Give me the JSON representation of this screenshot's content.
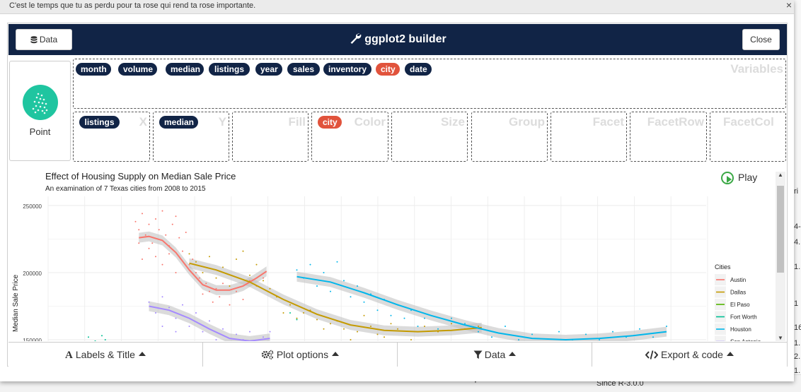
{
  "window": {
    "title": "C'est le temps que tu as perdu pour ta rose qui rend ta rose importante.",
    "close_glyph": "×"
  },
  "background": {
    "texts": [
      "ri",
      "4-",
      "4.",
      "1.",
      "1",
      "16",
      "1.",
      "2.",
      "1."
    ],
    "bottom_text": "Since R-3.0.0"
  },
  "header": {
    "data_button": "Data",
    "title": "ggplot2 builder",
    "close_button": "Close"
  },
  "geom": {
    "label": "Point"
  },
  "variables": {
    "label": "Variables",
    "items": [
      {
        "label": "month",
        "color": "#112446"
      },
      {
        "label": "volume",
        "color": "#112446"
      },
      {
        "label": "median",
        "color": "#112446"
      },
      {
        "label": "listings",
        "color": "#112446"
      },
      {
        "label": "year",
        "color": "#112446"
      },
      {
        "label": "sales",
        "color": "#112446"
      },
      {
        "label": "inventory",
        "color": "#112446"
      },
      {
        "label": "city",
        "color": "#e1533c"
      },
      {
        "label": "date",
        "color": "#112446"
      }
    ]
  },
  "dropzones": [
    {
      "label": "X",
      "value": "listings"
    },
    {
      "label": "Y",
      "value": "median"
    },
    {
      "label": "Fill",
      "value": ""
    },
    {
      "label": "Color",
      "value": "city"
    },
    {
      "label": "Size",
      "value": ""
    },
    {
      "label": "Group",
      "value": ""
    },
    {
      "label": "Facet",
      "value": ""
    },
    {
      "label": "FacetRow",
      "value": ""
    },
    {
      "label": "FacetCol",
      "value": ""
    }
  ],
  "play": {
    "label": "Play"
  },
  "footer": {
    "labels_title": "Labels & Title",
    "plot_options": "Plot options",
    "data": "Data",
    "export": "Export & code"
  },
  "chart_data": {
    "type": "scatter",
    "title": "Effect of Housing Supply on Median Sale Price",
    "subtitle": "An examination of 7 Texas cities from 2008 to 2015",
    "xlabel": "",
    "ylabel": "Median Sale Price",
    "yticks": [
      "250000",
      "200000",
      "150000"
    ],
    "ylim": [
      148000,
      258000
    ],
    "xlim": [
      0,
      100
    ],
    "grid": true,
    "legend_title": "Cities",
    "legend_position": "right",
    "series": [
      {
        "name": "Austin",
        "color": "#f8766d",
        "smooth": [
          [
            13.5,
            226000
          ],
          [
            15,
            227000
          ],
          [
            17,
            224000
          ],
          [
            19,
            215000
          ],
          [
            21,
            202000
          ],
          [
            23,
            191000
          ],
          [
            25,
            187000
          ],
          [
            27,
            187000
          ],
          [
            29,
            190000
          ],
          [
            31,
            196000
          ],
          [
            32.5,
            201000
          ]
        ],
        "points": [
          [
            13,
            238000
          ],
          [
            13.5,
            232000
          ],
          [
            14,
            244000
          ],
          [
            14.5,
            228000
          ],
          [
            15,
            236000
          ],
          [
            15.5,
            222000
          ],
          [
            16,
            240000
          ],
          [
            16.5,
            232000
          ],
          [
            17,
            246000
          ],
          [
            17.5,
            228000
          ],
          [
            18,
            220000
          ],
          [
            18.5,
            236000
          ],
          [
            19,
            242000
          ],
          [
            19.5,
            226000
          ],
          [
            20,
            216000
          ],
          [
            20.5,
            230000
          ],
          [
            21,
            206000
          ],
          [
            21.5,
            210000
          ],
          [
            22,
            200000
          ],
          [
            22.5,
            196000
          ],
          [
            23,
            184000
          ],
          [
            23.5,
            192000
          ],
          [
            24,
            186000
          ],
          [
            24.5,
            178000
          ],
          [
            25,
            188000
          ],
          [
            25.5,
            182000
          ],
          [
            26,
            192000
          ],
          [
            27,
            176000
          ],
          [
            28,
            186000
          ],
          [
            29,
            180000
          ],
          [
            30,
            194000
          ],
          [
            31,
            190000
          ],
          [
            32,
            196000
          ],
          [
            15,
            218000
          ],
          [
            16,
            212000
          ],
          [
            17,
            206000
          ],
          [
            18,
            214000
          ],
          [
            19,
            200000
          ],
          [
            14,
            210000
          ],
          [
            13.5,
            222000
          ]
        ]
      },
      {
        "name": "Dallas",
        "color": "#c49a00",
        "smooth": [
          [
            21,
            207000
          ],
          [
            25,
            202000
          ],
          [
            30,
            193000
          ],
          [
            35,
            180000
          ],
          [
            40,
            169000
          ],
          [
            45,
            161000
          ],
          [
            50,
            157000
          ],
          [
            55,
            156000
          ],
          [
            60,
            157000
          ],
          [
            64.5,
            159000
          ]
        ],
        "points": [
          [
            21,
            214000
          ],
          [
            22,
            208000
          ],
          [
            23,
            200000
          ],
          [
            24,
            212000
          ],
          [
            25,
            196000
          ],
          [
            26,
            204000
          ],
          [
            27,
            190000
          ],
          [
            28,
            210000
          ],
          [
            29,
            216000
          ],
          [
            30,
            198000
          ],
          [
            31,
            206000
          ],
          [
            32,
            194000
          ],
          [
            33,
            188000
          ],
          [
            34,
            182000
          ],
          [
            36,
            176000
          ],
          [
            38,
            170000
          ],
          [
            40,
            165000
          ],
          [
            42,
            162000
          ],
          [
            44,
            158000
          ],
          [
            46,
            156000
          ],
          [
            48,
            160000
          ],
          [
            50,
            152000
          ],
          [
            52,
            158000
          ],
          [
            54,
            150000
          ],
          [
            56,
            160000
          ],
          [
            58,
            156000
          ],
          [
            60,
            162000
          ],
          [
            62,
            158000
          ],
          [
            64,
            160000
          ],
          [
            35,
            170000
          ],
          [
            37,
            166000
          ],
          [
            39,
            172000
          ],
          [
            41,
            158000
          ],
          [
            43,
            164000
          ],
          [
            45,
            150000
          ],
          [
            47,
            168000
          ],
          [
            49,
            154000
          ],
          [
            51,
            162000
          ]
        ]
      },
      {
        "name": "El Paso",
        "color": "#53b400",
        "smooth": [],
        "points": []
      },
      {
        "name": "Fort Worth",
        "color": "#00c094",
        "smooth": [],
        "points": [
          [
            6,
            152000
          ],
          [
            7,
            149000
          ],
          [
            8,
            153000
          ],
          [
            8.5,
            150000
          ],
          [
            36,
            170000
          ],
          [
            37,
            165000
          ]
        ]
      },
      {
        "name": "Houston",
        "color": "#00b6eb",
        "smooth": [
          [
            37,
            197000
          ],
          [
            42,
            193000
          ],
          [
            47,
            185000
          ],
          [
            52,
            176000
          ],
          [
            57,
            168000
          ],
          [
            62,
            161000
          ],
          [
            67,
            155000
          ],
          [
            72,
            151000
          ],
          [
            77,
            150000
          ],
          [
            82,
            151000
          ],
          [
            87,
            153000
          ],
          [
            92,
            156000
          ]
        ],
        "points": [
          [
            37,
            202000
          ],
          [
            38,
            196000
          ],
          [
            39,
            206000
          ],
          [
            40,
            190000
          ],
          [
            41,
            200000
          ],
          [
            42,
            186000
          ],
          [
            43,
            208000
          ],
          [
            44,
            194000
          ],
          [
            45,
            182000
          ],
          [
            46,
            190000
          ],
          [
            47,
            178000
          ],
          [
            48,
            184000
          ],
          [
            49,
            172000
          ],
          [
            50,
            180000
          ],
          [
            51,
            168000
          ],
          [
            52,
            176000
          ],
          [
            53,
            166000
          ],
          [
            54,
            172000
          ],
          [
            55,
            160000
          ],
          [
            56,
            166000
          ],
          [
            58,
            158000
          ],
          [
            60,
            166000
          ],
          [
            62,
            162000
          ],
          [
            64,
            156000
          ],
          [
            66,
            152000
          ],
          [
            68,
            160000
          ],
          [
            70,
            150000
          ],
          [
            72,
            154000
          ],
          [
            74,
            148000
          ],
          [
            76,
            156000
          ],
          [
            78,
            150000
          ],
          [
            80,
            154000
          ],
          [
            82,
            150000
          ],
          [
            84,
            156000
          ],
          [
            86,
            152000
          ],
          [
            88,
            158000
          ],
          [
            90,
            152000
          ],
          [
            92,
            160000
          ]
        ]
      },
      {
        "name": "San Antonio",
        "color": "#a58aff",
        "smooth": [
          [
            15,
            175000
          ],
          [
            18,
            172000
          ],
          [
            21,
            166000
          ],
          [
            24,
            158000
          ],
          [
            27,
            151000
          ],
          [
            30,
            149000
          ],
          [
            33,
            151000
          ]
        ],
        "points": [
          [
            15,
            178000
          ],
          [
            16,
            170000
          ],
          [
            17,
            182000
          ],
          [
            18,
            174000
          ],
          [
            19,
            166000
          ],
          [
            20,
            176000
          ],
          [
            21,
            160000
          ],
          [
            22,
            170000
          ],
          [
            23,
            156000
          ],
          [
            24,
            164000
          ],
          [
            25,
            150000
          ],
          [
            26,
            158000
          ],
          [
            27,
            148000
          ],
          [
            28,
            154000
          ],
          [
            29,
            150000
          ],
          [
            30,
            156000
          ],
          [
            31,
            148000
          ],
          [
            32,
            152000
          ],
          [
            33,
            156000
          ],
          [
            17,
            160000
          ],
          [
            19,
            156000
          ]
        ]
      }
    ]
  }
}
